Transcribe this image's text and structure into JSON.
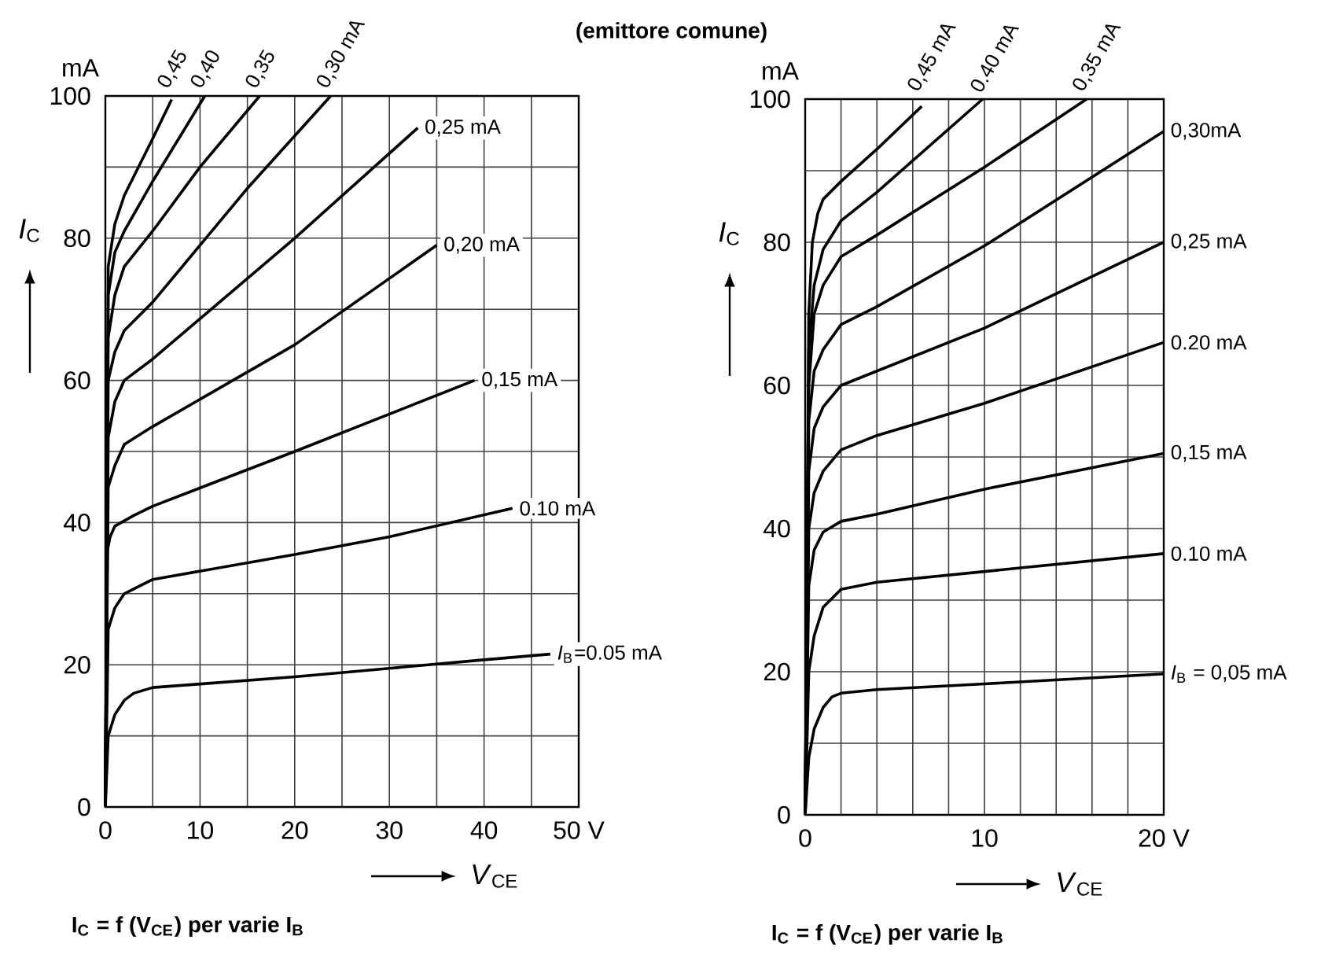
{
  "chart_data": [
    {
      "type": "line",
      "title": "(emittore comune)",
      "xlabel": "*V*$_{CE}$",
      "ylabel": "*I*$_{C}$",
      "annotations": [
        "mA",
        "**I$_{C}$ = f (V$_{CE}$)   per   varie   I$_{B}$**"
      ],
      "xlim": [
        0,
        50
      ],
      "ylim": [
        0,
        100
      ],
      "grid": true,
      "xticks": [
        0,
        {
          "value": 5,
          "label": null
        },
        10,
        {
          "value": 15,
          "label": null
        },
        20,
        {
          "value": 25,
          "label": null
        },
        30,
        {
          "value": 35,
          "label": null
        },
        40,
        {
          "value": 45,
          "label": null
        },
        {
          "value": 50,
          "label": "50 V"
        }
      ],
      "yticks": [
        0,
        {
          "value": 10,
          "label": null
        },
        20,
        {
          "value": 30,
          "label": null
        },
        40,
        {
          "value": 50,
          "label": null
        },
        60,
        {
          "value": 70,
          "label": null
        },
        80,
        {
          "value": 90,
          "label": null
        },
        100
      ],
      "series": [
        {
          "name": "*I*$_{B}$=0.05 mA",
          "color": "#000000",
          "x": [
            0,
            0.3,
            1,
            2,
            3,
            5,
            10,
            20,
            30,
            40,
            47
          ],
          "values": [
            0,
            10,
            13,
            15,
            16,
            16.8,
            17.3,
            18.3,
            19.5,
            20.7,
            21.5
          ]
        },
        {
          "name": "0.10 mA",
          "color": "#000000",
          "x": [
            0,
            0.3,
            1,
            2,
            5,
            20,
            30,
            43
          ],
          "values": [
            0,
            25,
            28,
            30,
            32,
            35.5,
            38,
            42
          ]
        },
        {
          "name": "0,15 mA",
          "color": "#000000",
          "x": [
            0,
            0.2,
            0.5,
            1,
            3,
            5,
            20,
            39
          ],
          "values": [
            0,
            36,
            38,
            39.5,
            41,
            42.3,
            50,
            60
          ]
        },
        {
          "name": "0,20 mA",
          "color": "#000000",
          "x": [
            0,
            0.3,
            1,
            2,
            5,
            20,
            35
          ],
          "values": [
            0,
            45,
            48,
            51,
            53.5,
            65,
            79
          ]
        },
        {
          "name": "0,25 mA",
          "color": "#000000",
          "x": [
            0,
            0.3,
            1,
            2,
            5,
            20,
            33
          ],
          "values": [
            0,
            52,
            57,
            60,
            63,
            80,
            95.5
          ]
        },
        {
          "name": "0,30 mA",
          "color": "#000000",
          "x": [
            0,
            0.3,
            1,
            2,
            5,
            15,
            23.8
          ],
          "values": [
            0,
            60,
            64,
            67,
            71,
            87,
            100
          ]
        },
        {
          "name": "0,35",
          "color": "#000000",
          "x": [
            0,
            0.3,
            1,
            2,
            5,
            10,
            16.3
          ],
          "values": [
            0,
            66,
            72,
            76,
            81,
            90,
            100
          ]
        },
        {
          "name": "0,40",
          "color": "#000000",
          "x": [
            0,
            0.3,
            1,
            2,
            5,
            10.5
          ],
          "values": [
            0,
            72,
            78,
            81,
            88,
            100
          ]
        },
        {
          "name": "0,45",
          "color": "#000000",
          "x": [
            0,
            0.3,
            1,
            2,
            5,
            7
          ],
          "values": [
            0,
            76,
            82,
            86,
            94,
            99.5
          ]
        }
      ]
    },
    {
      "type": "line",
      "xlabel": "*V*$_{CE}$",
      "ylabel": "*I*$_{C}$",
      "annotations": [
        "mA",
        "**I$_{C}$ = f (V$_{CE}$)   per   varie   I$_{B}$**"
      ],
      "xlim": [
        0,
        20
      ],
      "ylim": [
        0,
        100
      ],
      "grid": true,
      "xticks": [
        0,
        {
          "value": 2,
          "label": null
        },
        {
          "value": 4,
          "label": null
        },
        {
          "value": 6,
          "label": null
        },
        {
          "value": 8,
          "label": null
        },
        10,
        {
          "value": 12,
          "label": null
        },
        {
          "value": 14,
          "label": null
        },
        {
          "value": 16,
          "label": null
        },
        {
          "value": 18,
          "label": null
        },
        {
          "value": 20,
          "label": "20 V"
        }
      ],
      "yticks": [
        0,
        {
          "value": 10,
          "label": null
        },
        20,
        {
          "value": 30,
          "label": null
        },
        40,
        {
          "value": 50,
          "label": null
        },
        60,
        {
          "value": 70,
          "label": null
        },
        80,
        {
          "value": 90,
          "label": null
        },
        100
      ],
      "series": [
        {
          "name": "*I*$_{B}$ = 0,05 mA",
          "color": "#000000",
          "x": [
            0,
            0.2,
            0.5,
            1,
            1.5,
            2,
            4,
            10,
            20
          ],
          "values": [
            0,
            8,
            12,
            15,
            16.5,
            17,
            17.5,
            18.3,
            19.7
          ]
        },
        {
          "name": "0.10 mA",
          "color": "#000000",
          "x": [
            0,
            0.2,
            0.5,
            1,
            2,
            4,
            10,
            20
          ],
          "values": [
            0,
            20,
            25,
            29,
            31.5,
            32.5,
            34,
            36.5
          ]
        },
        {
          "name": "0,15 mA",
          "color": "#000000",
          "x": [
            0,
            0.2,
            0.5,
            1,
            2,
            4,
            10,
            20
          ],
          "values": [
            0,
            32,
            37,
            39.5,
            41,
            42,
            45.5,
            50.5
          ]
        },
        {
          "name": "0.20 mA",
          "color": "#000000",
          "x": [
            0,
            0.2,
            0.5,
            1,
            2,
            4,
            10,
            20
          ],
          "values": [
            0,
            40,
            45,
            48,
            51,
            53,
            57.5,
            66
          ]
        },
        {
          "name": "0,25 mA",
          "color": "#000000",
          "x": [
            0,
            0.2,
            0.5,
            1,
            2,
            4,
            10,
            20
          ],
          "values": [
            0,
            48,
            54,
            57,
            60,
            62,
            68,
            80
          ]
        },
        {
          "name": "0,30mA",
          "color": "#000000",
          "x": [
            0,
            0.2,
            0.5,
            1,
            2,
            4,
            10,
            20
          ],
          "values": [
            0,
            55,
            62,
            65,
            68.5,
            71,
            79.5,
            95.5
          ]
        },
        {
          "name": "0,35 mA",
          "color": "#000000",
          "x": [
            0,
            0.2,
            0.5,
            1,
            2,
            4,
            10,
            15.7
          ],
          "values": [
            0,
            60,
            70,
            74,
            78,
            81,
            90.5,
            100
          ]
        },
        {
          "name": "0.40 mA",
          "color": "#000000",
          "x": [
            0,
            0.2,
            0.5,
            1,
            2,
            4,
            9.9
          ],
          "values": [
            0,
            65,
            74,
            79,
            83,
            87,
            100
          ]
        },
        {
          "name": "0,45 mA",
          "color": "#000000",
          "x": [
            0,
            0.2,
            0.4,
            0.7,
            1,
            2,
            4,
            6.5
          ],
          "values": [
            0,
            70,
            80,
            84,
            86,
            88.5,
            93,
            99
          ]
        }
      ]
    }
  ]
}
